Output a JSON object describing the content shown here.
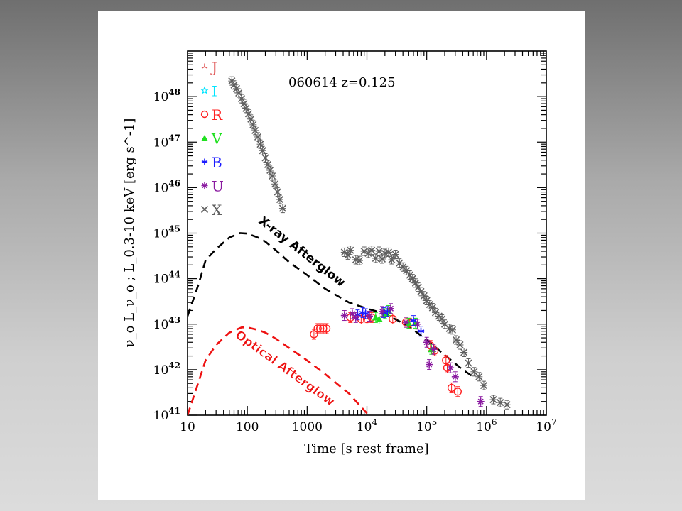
{
  "colors": {
    "J": "#e05a5a",
    "I": "#00e5ff",
    "R": "#ff2020",
    "V": "#20e020",
    "B": "#1a1aff",
    "U": "#8a1aa0",
    "X": "#5f5f5f",
    "xray_curve": "#000000",
    "optical_curve": "#ee1111"
  },
  "chart_data": {
    "type": "scatter",
    "title": "060614 z=0.125",
    "xlabel": "Time [s rest frame]",
    "ylabel": "ν_o L_ν_o ; L_0.3-10 keV [erg s^-1]",
    "xscale": "log",
    "yscale": "log",
    "xlim": [
      10,
      10000000
    ],
    "ylim": [
      1e+41,
      1e+49
    ],
    "x_ticks": [
      {
        "label": "10",
        "value": 10
      },
      {
        "label": "100",
        "value": 100
      },
      {
        "label": "1000",
        "value": 1000
      },
      {
        "label": "10",
        "exp": "4",
        "value": 10000
      },
      {
        "label": "10",
        "exp": "5",
        "value": 100000
      },
      {
        "label": "10",
        "exp": "6",
        "value": 1000000
      },
      {
        "label": "10",
        "exp": "7",
        "value": 10000000
      }
    ],
    "y_ticks": [
      {
        "base": "10",
        "exp": "41",
        "value": 1e+41
      },
      {
        "base": "10",
        "exp": "42",
        "value": 1e+42
      },
      {
        "base": "10",
        "exp": "43",
        "value": 1e+43
      },
      {
        "base": "10",
        "exp": "44",
        "value": 1e+44
      },
      {
        "base": "10",
        "exp": "45",
        "value": 1e+45
      },
      {
        "base": "10",
        "exp": "46",
        "value": 1e+46
      },
      {
        "base": "10",
        "exp": "47",
        "value": 1e+47
      },
      {
        "base": "10",
        "exp": "48",
        "value": 1e+48
      }
    ],
    "legend": [
      "J",
      "I",
      "R",
      "V",
      "B",
      "U",
      "X"
    ],
    "legend_position": "top-left",
    "annotations": [
      "X-ray Afterglow",
      "Optical Afterglow"
    ],
    "series": [
      {
        "name": "X",
        "marker": "x",
        "points": [
          [
            55,
            2.2e+48
          ],
          [
            60,
            1.8e+48
          ],
          [
            66,
            1.5e+48
          ],
          [
            72,
            1.2e+48
          ],
          [
            80,
            9e+47
          ],
          [
            88,
            7e+47
          ],
          [
            95,
            5.5e+47
          ],
          [
            105,
            4.2e+47
          ],
          [
            115,
            3.2e+47
          ],
          [
            125,
            2.4e+47
          ],
          [
            135,
            1.8e+47
          ],
          [
            150,
            1.3e+47
          ],
          [
            165,
            9e+46
          ],
          [
            180,
            6.5e+46
          ],
          [
            200,
            4.5e+46
          ],
          [
            220,
            3.2e+46
          ],
          [
            240,
            2.4e+46
          ],
          [
            260,
            1.8e+46
          ],
          [
            290,
            1.2e+46
          ],
          [
            320,
            8e+45
          ],
          [
            350,
            5.5e+45
          ],
          [
            390,
            3.5e+45
          ],
          [
            4200,
            3.8e+44
          ],
          [
            4800,
            3.3e+44
          ],
          [
            5300,
            4.2e+44
          ],
          [
            6500,
            2.6e+44
          ],
          [
            7500,
            2.5e+44
          ],
          [
            9000,
            4e+44
          ],
          [
            10500,
            3.6e+44
          ],
          [
            12000,
            4.2e+44
          ],
          [
            14000,
            2.8e+44
          ],
          [
            16000,
            4e+44
          ],
          [
            18000,
            2.7e+44
          ],
          [
            20000,
            3.6e+44
          ],
          [
            23000,
            3.8e+44
          ],
          [
            26000,
            2.6e+44
          ],
          [
            30000,
            3.4e+44
          ],
          [
            35000,
            2.2e+44
          ],
          [
            40000,
            1.8e+44
          ],
          [
            46000,
            1.5e+44
          ],
          [
            52000,
            1.2e+44
          ],
          [
            58000,
            1e+44
          ],
          [
            65000,
            8e+43
          ],
          [
            72000,
            6.5e+43
          ],
          [
            80000,
            5.2e+43
          ],
          [
            90000,
            4.2e+43
          ],
          [
            100000,
            3.3e+43
          ],
          [
            112000,
            2.7e+43
          ],
          [
            125000,
            2.3e+43
          ],
          [
            140000,
            1.8e+43
          ],
          [
            160000,
            1.5e+43
          ],
          [
            180000,
            1.3e+43
          ],
          [
            200000,
            1e+43
          ],
          [
            240000,
            8e+42
          ],
          [
            270000,
            7.5e+42
          ],
          [
            310000,
            4.5e+42
          ],
          [
            360000,
            3.5e+42
          ],
          [
            420000,
            2.4e+42
          ],
          [
            500000,
            1.4e+42
          ],
          [
            620000,
            9e+41
          ],
          [
            750000,
            7e+41
          ],
          [
            900000,
            4.5e+41
          ],
          [
            1300000,
            2.2e+41
          ],
          [
            1700000,
            1.9e+41
          ],
          [
            2200000,
            1.7e+41
          ]
        ]
      },
      {
        "name": "R",
        "marker": "circle",
        "points": [
          [
            1300,
            6e+42
          ],
          [
            1500,
            8e+42
          ],
          [
            1650,
            8e+42
          ],
          [
            1850,
            8e+42
          ],
          [
            2100,
            8e+42
          ],
          [
            5300,
            1.4e+43
          ],
          [
            8000,
            1.3e+43
          ],
          [
            10000,
            1.3e+43
          ],
          [
            12000,
            1.4e+43
          ],
          [
            27000,
            1.3e+43
          ],
          [
            45000,
            1.1e+43
          ],
          [
            52000,
            1.05e+43
          ],
          [
            115000,
            3.4e+42
          ],
          [
            135000,
            2.6e+42
          ],
          [
            210000,
            1.6e+42
          ],
          [
            220000,
            1.1e+42
          ],
          [
            260000,
            4e+41
          ],
          [
            330000,
            3.3e+41
          ]
        ]
      },
      {
        "name": "V",
        "marker": "triangle",
        "points": [
          [
            14000,
            1.4e+43
          ],
          [
            16000,
            1.3e+43
          ],
          [
            20000,
            1.7e+43
          ],
          [
            23000,
            2e+43
          ],
          [
            50000,
            1.05e+43
          ],
          [
            65000,
            1.05e+43
          ],
          [
            120000,
            2.8e+42
          ]
        ]
      },
      {
        "name": "B",
        "marker": "star",
        "points": [
          [
            7000,
            1.6e+43
          ],
          [
            8500,
            1.8e+43
          ],
          [
            9500,
            1.7e+43
          ],
          [
            19000,
            1.8e+43
          ],
          [
            22000,
            1.9e+43
          ],
          [
            60000,
            1.2e+43
          ],
          [
            80000,
            7e+42
          ]
        ]
      },
      {
        "name": "U",
        "marker": "asterisk",
        "points": [
          [
            4200,
            1.55e+43
          ],
          [
            5700,
            1.7e+43
          ],
          [
            6500,
            1.4e+43
          ],
          [
            11000,
            1.5e+43
          ],
          [
            18000,
            1.9e+43
          ],
          [
            25000,
            2.2e+43
          ],
          [
            45000,
            1.1e+43
          ],
          [
            70000,
            1e+43
          ],
          [
            100000,
            4e+42
          ],
          [
            110000,
            1.3e+42
          ],
          [
            130000,
            2.8e+42
          ],
          [
            250000,
            1.1e+42
          ],
          [
            300000,
            7e+41
          ],
          [
            800000,
            2e+41
          ]
        ]
      }
    ],
    "model_curves": [
      {
        "name": "X-ray Afterglow",
        "points": [
          [
            10,
            1.5e+43
          ],
          [
            15,
            7e+43
          ],
          [
            20,
            2.5e+44
          ],
          [
            30,
            4.5e+44
          ],
          [
            50,
            8e+44
          ],
          [
            75,
            1e+45
          ],
          [
            100,
            9.8e+44
          ],
          [
            150,
            8e+44
          ],
          [
            200,
            6.5e+44
          ],
          [
            300,
            4.2e+44
          ],
          [
            500,
            2.3e+44
          ],
          [
            1000,
            1.2e+44
          ],
          [
            2000,
            6e+43
          ],
          [
            5000,
            3e+43
          ],
          [
            10000,
            2.2e+43
          ],
          [
            20000,
            1.7e+43
          ],
          [
            50000,
            9e+42
          ],
          [
            100000,
            4.5e+42
          ],
          [
            200000,
            2.1e+42
          ],
          [
            400000,
            1e+42
          ],
          [
            600000,
            7e+41
          ]
        ]
      },
      {
        "name": "Optical Afterglow",
        "points": [
          [
            10,
            1e+41
          ],
          [
            15,
            5e+41
          ],
          [
            20,
            1.6e+42
          ],
          [
            30,
            3.5e+42
          ],
          [
            50,
            6.5e+42
          ],
          [
            80,
            8.5e+42
          ],
          [
            100,
            8.5e+42
          ],
          [
            150,
            7.5e+42
          ],
          [
            200,
            6.5e+42
          ],
          [
            300,
            4.8e+42
          ],
          [
            500,
            3e+42
          ],
          [
            1000,
            1.6e+42
          ],
          [
            2000,
            8e+41
          ],
          [
            5000,
            3e+41
          ],
          [
            10000,
            1.1e+41
          ]
        ]
      }
    ]
  }
}
